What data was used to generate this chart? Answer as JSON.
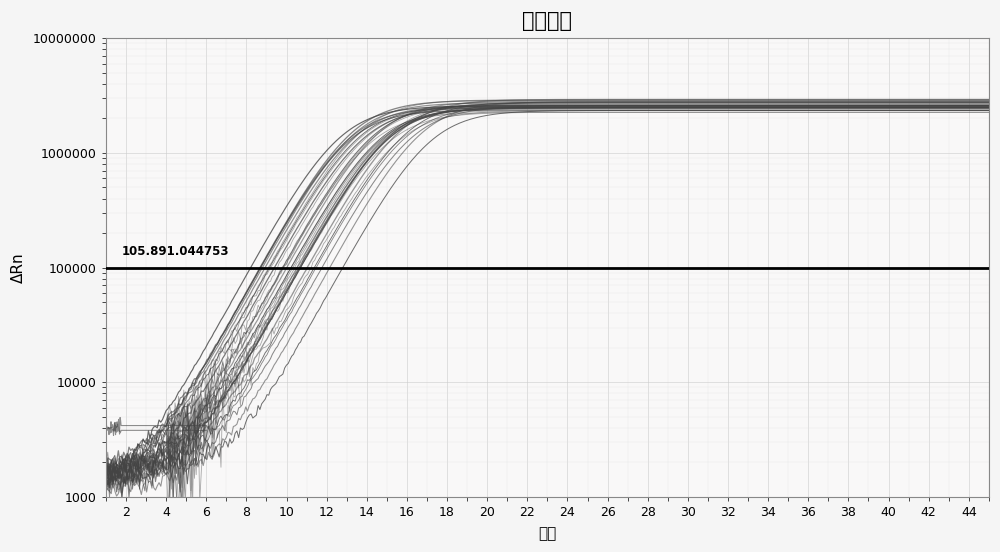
{
  "title": "扩增曲线",
  "xlabel": "循环",
  "ylabel": "ΔRn",
  "xlim": [
    1,
    45
  ],
  "ylim_log": [
    1000,
    10000000
  ],
  "x_ticks": [
    2,
    4,
    6,
    8,
    10,
    12,
    14,
    16,
    18,
    20,
    22,
    24,
    26,
    28,
    30,
    32,
    34,
    36,
    38,
    40,
    42,
    44
  ],
  "y_ticks": [
    1000,
    10000,
    100000,
    1000000,
    10000000
  ],
  "y_tick_labels": [
    "1000",
    "10000",
    "100000",
    "1000000",
    "10000000"
  ],
  "threshold_value": 100000,
  "threshold_label": "105.891.044753",
  "background_color": "#f5f5f5",
  "plot_bg_color": "#f9f8f8",
  "grid_color": "#cccccc",
  "grid_minor_color": "#e0e0e0",
  "curve_color": "#444444",
  "threshold_color": "#000000",
  "n_main_curves": 22,
  "n_noise_curves": 12,
  "plateau_min": 2200000,
  "plateau_max": 3000000,
  "ct_min": 12.5,
  "ct_max": 16.5,
  "steepness": 0.75,
  "title_fontsize": 15,
  "label_fontsize": 11,
  "tick_fontsize": 9,
  "border_color": "#888888"
}
